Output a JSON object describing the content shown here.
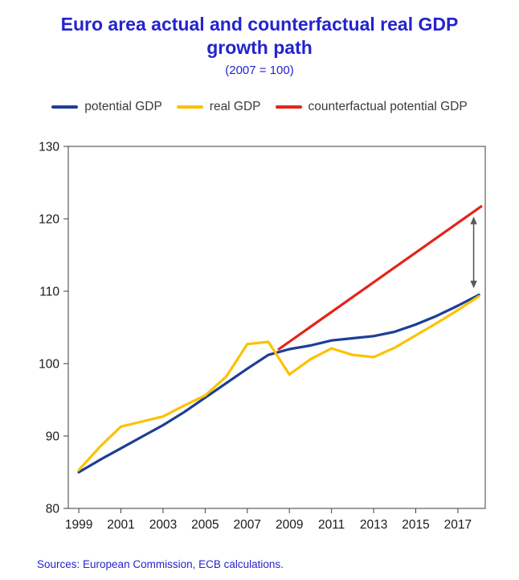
{
  "header": {
    "title": "Euro area actual and counterfactual real GDP growth path",
    "subtitle": "(2007 = 100)"
  },
  "footer": {
    "source": "Sources: European Commission, ECB calculations."
  },
  "colors": {
    "title_blue": "#2424cd",
    "source_blue": "#2424cd",
    "axis_text": "#1a1a1a",
    "frame": "#3c3c3c",
    "arrow": "#58595b",
    "potential_gdp": "#1d3e94",
    "real_gdp": "#fcc200",
    "counterfactual_gdp": "#e5231b"
  },
  "chart_data": {
    "type": "line",
    "title": "Euro area actual and counterfactual real GDP growth path",
    "subtitle": "(2007 = 100)",
    "xlim": [
      1998.5,
      2018.3
    ],
    "ylim": [
      80,
      130
    ],
    "x_ticks": [
      1999,
      2001,
      2003,
      2005,
      2007,
      2009,
      2011,
      2013,
      2015,
      2017
    ],
    "y_ticks": [
      80,
      90,
      100,
      110,
      120,
      130
    ],
    "grid": false,
    "legend_position": "top",
    "x": [
      1999,
      2000,
      2001,
      2002,
      2003,
      2004,
      2005,
      2006,
      2007,
      2008,
      2009,
      2010,
      2011,
      2012,
      2013,
      2014,
      2015,
      2016,
      2017,
      2018
    ],
    "series": [
      {
        "name": "potential GDP",
        "color": "#1d3e94",
        "values": [
          85.0,
          86.7,
          88.3,
          89.9,
          91.5,
          93.3,
          95.3,
          97.3,
          99.3,
          101.2,
          102.0,
          102.5,
          103.2,
          103.5,
          103.8,
          104.4,
          105.4,
          106.6,
          108.0,
          109.5
        ]
      },
      {
        "name": "real GDP",
        "color": "#fcc200",
        "values": [
          85.3,
          88.5,
          91.3,
          92.0,
          92.7,
          94.2,
          95.6,
          98.2,
          102.7,
          103.0,
          98.5,
          100.6,
          102.1,
          101.2,
          100.9,
          102.2,
          103.9,
          105.6,
          107.4,
          109.3
        ]
      },
      {
        "name": "counterfactual potential GDP",
        "color": "#e5231b",
        "x": [
          2008.5,
          2018.1
        ],
        "values": [
          102.0,
          121.7
        ]
      }
    ],
    "annotation": {
      "type": "double-headed-arrow",
      "x": 2017.75,
      "y_from": 110.4,
      "y_to": 120.3,
      "color": "#58595b"
    }
  }
}
